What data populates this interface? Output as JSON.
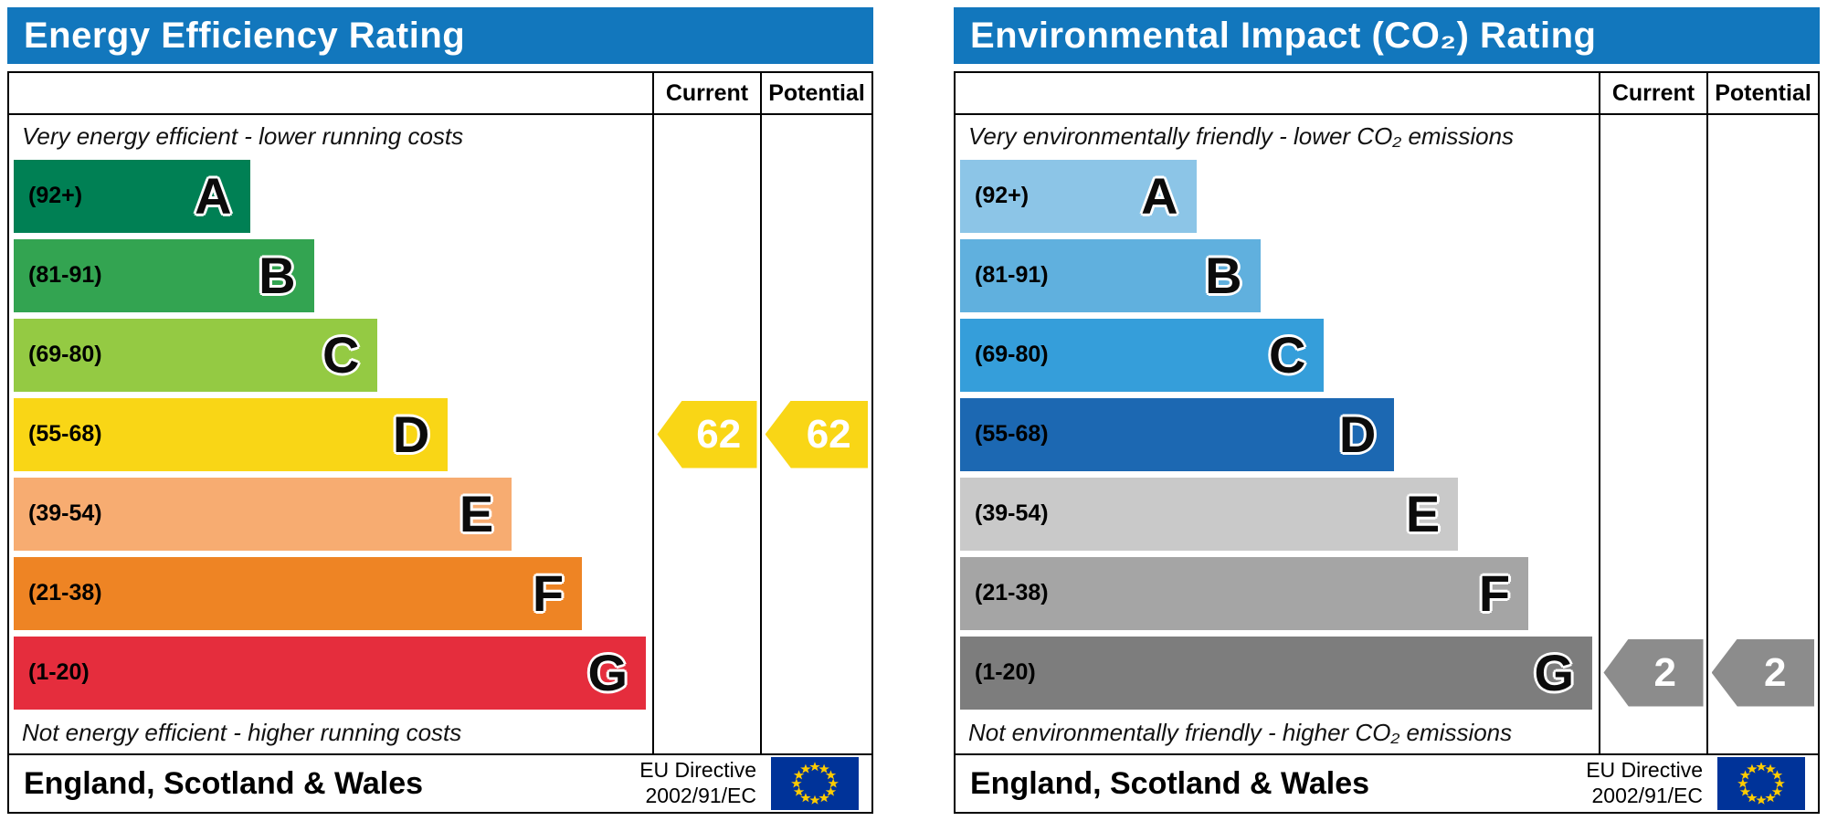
{
  "theme": {
    "header_bg": "#1277bd",
    "header_text": "#ffffff",
    "border_color": "#000000",
    "flag_blue": "#003399",
    "flag_star": "#ffcc00",
    "page_bg": "#ffffff"
  },
  "chart_data": [
    {
      "type": "bar",
      "title": "Energy Efficiency Rating",
      "columns": {
        "current": "Current",
        "potential": "Potential"
      },
      "top_caption": "Very energy efficient - lower running costs",
      "bottom_caption": "Not energy efficient - higher running costs",
      "bands": [
        {
          "letter": "A",
          "range_label": "(92+)",
          "min": 92,
          "max": 100,
          "color": "#008054",
          "width_pct": 37
        },
        {
          "letter": "B",
          "range_label": "(81-91)",
          "min": 81,
          "max": 91,
          "color": "#33a451",
          "width_pct": 47
        },
        {
          "letter": "C",
          "range_label": "(69-80)",
          "min": 69,
          "max": 80,
          "color": "#94ca43",
          "width_pct": 57
        },
        {
          "letter": "D",
          "range_label": "(55-68)",
          "min": 55,
          "max": 68,
          "color": "#f9d616",
          "width_pct": 68
        },
        {
          "letter": "E",
          "range_label": "(39-54)",
          "min": 39,
          "max": 54,
          "color": "#f7ac71",
          "width_pct": 78
        },
        {
          "letter": "F",
          "range_label": "(21-38)",
          "min": 21,
          "max": 38,
          "color": "#ee8424",
          "width_pct": 89
        },
        {
          "letter": "G",
          "range_label": "(1-20)",
          "min": 1,
          "max": 20,
          "color": "#e52d3d",
          "width_pct": 99
        }
      ],
      "current": {
        "value": 62,
        "band": "D",
        "color": "#f9d616"
      },
      "potential": {
        "value": 62,
        "band": "D",
        "color": "#f9d616"
      },
      "footer": {
        "region": "England, Scotland & Wales",
        "directive_line1": "EU Directive",
        "directive_line2": "2002/91/EC"
      }
    },
    {
      "type": "bar",
      "title": "Environmental Impact (CO₂) Rating",
      "columns": {
        "current": "Current",
        "potential": "Potential"
      },
      "top_caption": "Very environmentally friendly - lower CO₂ emissions",
      "bottom_caption": "Not environmentally friendly - higher CO₂ emissions",
      "bands": [
        {
          "letter": "A",
          "range_label": "(92+)",
          "min": 92,
          "max": 100,
          "color": "#8cc5e7",
          "width_pct": 37
        },
        {
          "letter": "B",
          "range_label": "(81-91)",
          "min": 81,
          "max": 91,
          "color": "#60b0de",
          "width_pct": 47
        },
        {
          "letter": "C",
          "range_label": "(69-80)",
          "min": 69,
          "max": 80,
          "color": "#359eda",
          "width_pct": 57
        },
        {
          "letter": "D",
          "range_label": "(55-68)",
          "min": 55,
          "max": 68,
          "color": "#1c68b2",
          "width_pct": 68
        },
        {
          "letter": "E",
          "range_label": "(39-54)",
          "min": 39,
          "max": 54,
          "color": "#c9c9c9",
          "width_pct": 78
        },
        {
          "letter": "F",
          "range_label": "(21-38)",
          "min": 21,
          "max": 38,
          "color": "#a5a5a5",
          "width_pct": 89
        },
        {
          "letter": "G",
          "range_label": "(1-20)",
          "min": 1,
          "max": 20,
          "color": "#7d7d7d",
          "width_pct": 99
        }
      ],
      "current": {
        "value": 2,
        "band": "G",
        "color": "#8c8c8c"
      },
      "potential": {
        "value": 2,
        "band": "G",
        "color": "#8c8c8c"
      },
      "footer": {
        "region": "England, Scotland & Wales",
        "directive_line1": "EU Directive",
        "directive_line2": "2002/91/EC"
      }
    }
  ]
}
